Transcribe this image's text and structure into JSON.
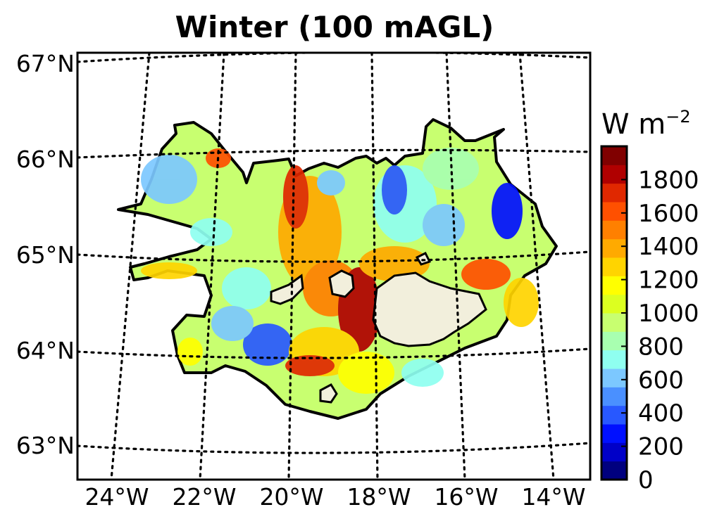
{
  "title": "Winter (100 mAGL)",
  "map": {
    "lat_labels": [
      "67°N",
      "66°N",
      "65°N",
      "64°N",
      "63°N"
    ],
    "lon_labels": [
      "24°W",
      "22°W",
      "20°W",
      "18°W",
      "16°W",
      "14°W"
    ],
    "grid_style": "dotted",
    "glaciers_color": "#f2efdc"
  },
  "colorbar": {
    "unit_main": "W m",
    "unit_exp": "−2",
    "tick_labels": [
      "0",
      "200",
      "400",
      "600",
      "800",
      "1000",
      "1200",
      "1400",
      "1600",
      "1800"
    ],
    "colors": [
      "#00007f",
      "#0000c8",
      "#0010ff",
      "#2858ff",
      "#4a90ff",
      "#7cc8ff",
      "#8ffff0",
      "#a8ffb0",
      "#c8ff70",
      "#dcff20",
      "#ffff00",
      "#ffd400",
      "#ffaa00",
      "#ff8000",
      "#ff5000",
      "#e02800",
      "#b00000",
      "#800000"
    ]
  }
}
